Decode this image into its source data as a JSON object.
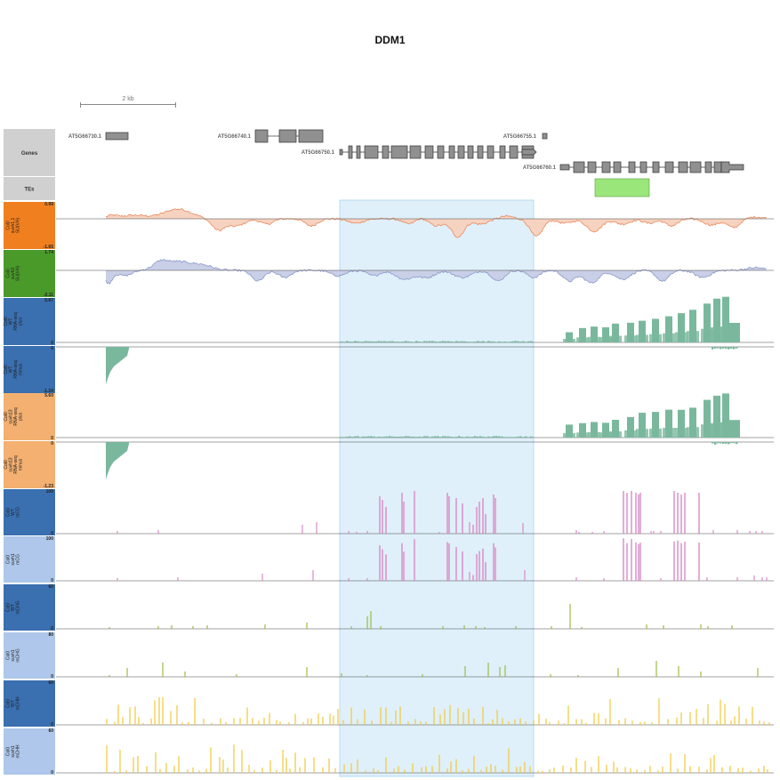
{
  "title": "DDM1",
  "scale_bar": {
    "label": "2 kb"
  },
  "colors": {
    "label_orange": "#f07f1f",
    "label_green": "#4a9a2a",
    "label_blue": "#3a6fb0",
    "label_peach": "#f3b070",
    "label_lightblue": "#aec7ea",
    "label_gray": "#d0d0d0",
    "su_signal": "#e98a5e",
    "su_fill": "#f6d3c0",
    "su2_signal": "#8a98c8",
    "su2_fill": "#c9cfe6",
    "rna": "#7ab89e",
    "mcg": "#d98ac6",
    "mchg": "#9cba44",
    "mchh": "#f1c83a",
    "highlight": "#dff0fa",
    "te": "#9be67a",
    "gene": "#909090"
  },
  "chart_data": {
    "type": "genome-browser",
    "region_title": "DDM1",
    "genes": [
      {
        "name": "AT5G66730.1"
      },
      {
        "name": "AT5G66740.1"
      },
      {
        "name": "AT5G66750.1"
      },
      {
        "name": "AT5G66755.1"
      },
      {
        "name": "AT5G66760.1"
      }
    ],
    "tracks": [
      {
        "id": "genes",
        "label": [
          "Genes"
        ]
      },
      {
        "id": "tes",
        "label": [
          "TEs"
        ]
      },
      {
        "id": "su_col0_1",
        "label": [
          "Col0",
          "suvh1,1",
          "SU(VH)"
        ],
        "ymax": "0.99",
        "ymin": "-1.65"
      },
      {
        "id": "su_col0_3",
        "label": [
          "Col0",
          "suvh3",
          "SU(VH)"
        ],
        "ymax": "1.74",
        "ymin": "-2.11"
      },
      {
        "id": "rna_wt_plus",
        "label": [
          "Col0",
          "WT",
          "RNA-seq",
          "plus"
        ],
        "ymax": "5.87",
        "ymin": "0"
      },
      {
        "id": "rna_wt_minus",
        "label": [
          "Col0",
          "WT",
          "RNA-seq",
          "minus"
        ],
        "ymax": "0",
        "ymin": "-1.24"
      },
      {
        "id": "rna_mut_plus",
        "label": [
          "Col0",
          "suvh13",
          "RNA-seq",
          "plus"
        ],
        "ymax": "5.60",
        "ymin": "0"
      },
      {
        "id": "rna_mut_minus",
        "label": [
          "Col0",
          "suvh13",
          "RNA-seq",
          "minus"
        ],
        "ymax": "0",
        "ymin": "-1.23"
      },
      {
        "id": "mcg_wt",
        "label": [
          "Col0",
          "WT",
          "mCG"
        ],
        "ymax": "100",
        "ymin": "0"
      },
      {
        "id": "mcg_mut",
        "label": [
          "Col0",
          "suvh1",
          "mCG"
        ],
        "ymax": "100",
        "ymin": "0"
      },
      {
        "id": "mchg_wt",
        "label": [
          "Col0",
          "WT",
          "mCHG"
        ],
        "ymax": "60",
        "ymin": "0"
      },
      {
        "id": "mchg_mut",
        "label": [
          "Col0",
          "suvh1",
          "mCHG"
        ],
        "ymax": "80",
        "ymin": "0"
      },
      {
        "id": "mchh_wt",
        "label": [
          "Col0",
          "WT",
          "mCHH"
        ],
        "ymax": "60",
        "ymin": "0"
      },
      {
        "id": "mchh_mut",
        "label": [
          "Col0",
          "suvh1",
          "mCHH"
        ],
        "ymax": "60",
        "ymin": "0"
      }
    ]
  }
}
